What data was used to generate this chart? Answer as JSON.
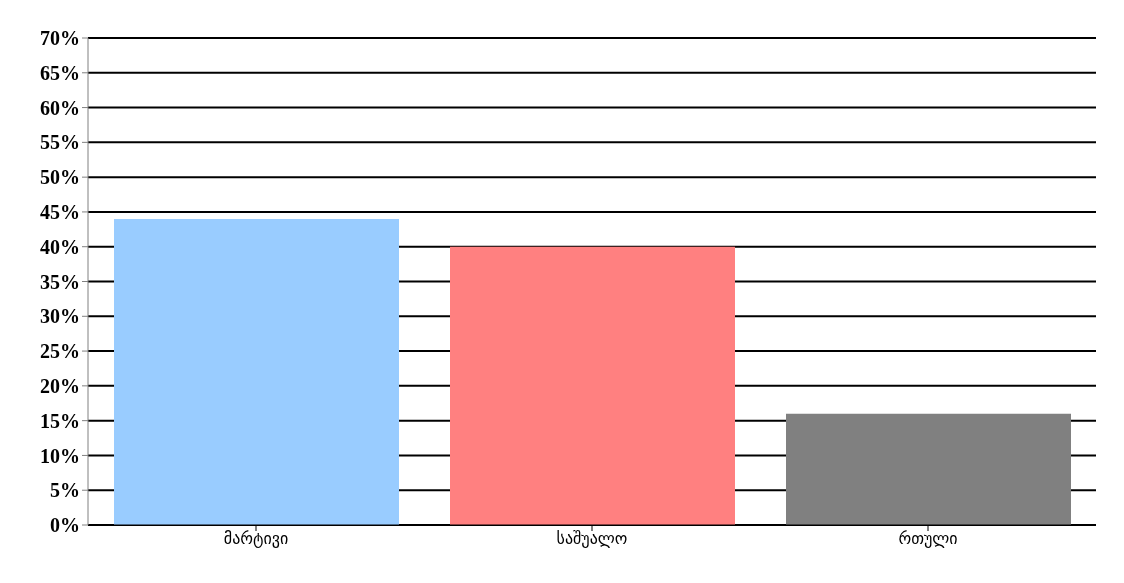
{
  "chart_data": {
    "type": "bar",
    "categories": [
      "მარტივი",
      "საშუალო",
      "რთული"
    ],
    "values": [
      44,
      40,
      16
    ],
    "colors": [
      "#99ccff",
      "#ff8080",
      "#808080"
    ],
    "ylim": [
      0,
      70
    ],
    "yticks": [
      {
        "value": 0,
        "label": "0%"
      },
      {
        "value": 5,
        "label": "5%"
      },
      {
        "value": 10,
        "label": "10%"
      },
      {
        "value": 15,
        "label": "15%"
      },
      {
        "value": 20,
        "label": "20%"
      },
      {
        "value": 25,
        "label": "25%"
      },
      {
        "value": 30,
        "label": "30%"
      },
      {
        "value": 35,
        "label": "35%"
      },
      {
        "value": 40,
        "label": "40%"
      },
      {
        "value": 45,
        "label": "45%"
      },
      {
        "value": 50,
        "label": "50%"
      },
      {
        "value": 55,
        "label": "55%"
      },
      {
        "value": 60,
        "label": "60%"
      },
      {
        "value": 65,
        "label": "65%"
      },
      {
        "value": 70,
        "label": "70%"
      }
    ],
    "grid": "y",
    "legend": false
  }
}
